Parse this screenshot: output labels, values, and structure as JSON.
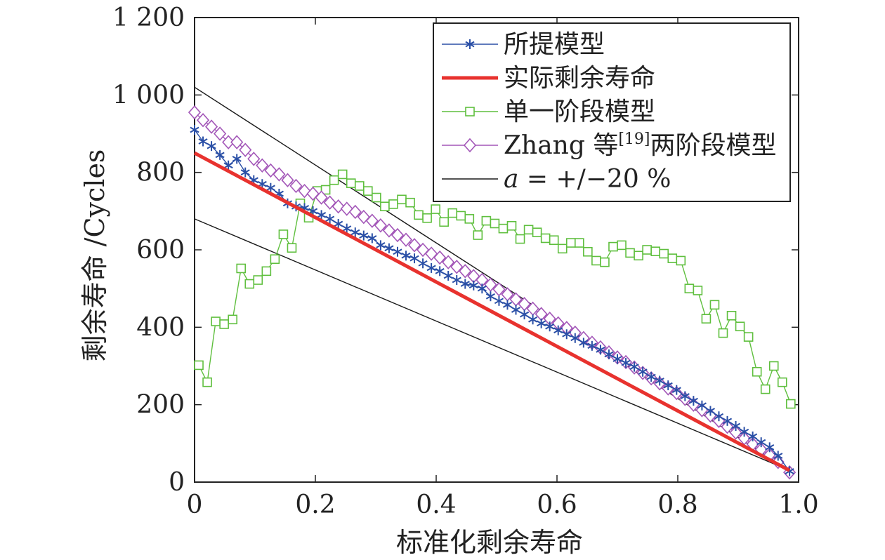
{
  "chart_data": {
    "type": "line",
    "title": "",
    "xlabel": "标准化剩余寿命",
    "ylabel": "剩余寿命 /Cycles",
    "xlim": [
      0,
      1.0
    ],
    "ylim": [
      0,
      1200
    ],
    "x_ticks": [
      0,
      0.2,
      0.4,
      0.6,
      0.8,
      1.0
    ],
    "x_tick_labels": [
      "0",
      "0.2",
      "0.4",
      "0.6",
      "0.8",
      "1.0"
    ],
    "y_ticks": [
      0,
      200,
      400,
      600,
      800,
      1000,
      1200
    ],
    "y_tick_labels": [
      "0",
      "200",
      "400",
      "600",
      "800",
      "1 000",
      "1 200"
    ],
    "grid": false,
    "legend_position": "top-right",
    "legend": [
      {
        "label": "所提模型",
        "series": "proposed"
      },
      {
        "label": "实际剩余寿命",
        "series": "actual"
      },
      {
        "label": "单一阶段模型",
        "series": "single"
      },
      {
        "label": "Zhang 等",
        "sup": "[19]",
        "label_suffix": "两阶段模型",
        "series": "zhang"
      },
      {
        "label_prefix": "a",
        "label": " = +/−20 %",
        "series": "bounds"
      }
    ],
    "series": [
      {
        "key": "actual",
        "color": "#e8322e",
        "marker": "none",
        "x": [
          0,
          0.985
        ],
        "y": [
          850,
          30
        ]
      },
      {
        "key": "bounds",
        "color": "#1a1a1a",
        "marker": "none",
        "x": [
          0,
          0.985
        ],
        "y": [
          1020,
          30
        ],
        "y2": [
          680,
          30
        ]
      },
      {
        "key": "proposed",
        "color": "#2a4fa6",
        "marker": "star",
        "x": [
          0,
          0.014,
          0.028,
          0.042,
          0.056,
          0.07,
          0.084,
          0.098,
          0.112,
          0.126,
          0.14,
          0.154,
          0.168,
          0.182,
          0.196,
          0.21,
          0.224,
          0.238,
          0.252,
          0.266,
          0.28,
          0.294,
          0.308,
          0.322,
          0.336,
          0.35,
          0.364,
          0.378,
          0.392,
          0.406,
          0.42,
          0.434,
          0.448,
          0.462,
          0.476,
          0.49,
          0.504,
          0.518,
          0.532,
          0.546,
          0.56,
          0.574,
          0.588,
          0.602,
          0.616,
          0.63,
          0.644,
          0.658,
          0.672,
          0.686,
          0.7,
          0.714,
          0.728,
          0.742,
          0.756,
          0.77,
          0.784,
          0.798,
          0.812,
          0.826,
          0.84,
          0.854,
          0.868,
          0.882,
          0.896,
          0.91,
          0.924,
          0.938,
          0.952,
          0.966,
          0.985
        ],
        "y": [
          910,
          880,
          868,
          845,
          818,
          835,
          800,
          780,
          770,
          760,
          745,
          720,
          712,
          708,
          700,
          690,
          680,
          667,
          655,
          645,
          637,
          630,
          612,
          604,
          595,
          585,
          578,
          565,
          553,
          545,
          533,
          522,
          512,
          508,
          500,
          480,
          468,
          458,
          445,
          433,
          420,
          410,
          402,
          392,
          382,
          372,
          360,
          352,
          342,
          330,
          318,
          308,
          298,
          285,
          272,
          262,
          250,
          238,
          222,
          210,
          198,
          184,
          170,
          158,
          145,
          130,
          118,
          103,
          90,
          68,
          28
        ]
      },
      {
        "key": "zhang",
        "color": "#a357b8",
        "marker": "diamond",
        "x": [
          0,
          0.014,
          0.028,
          0.042,
          0.056,
          0.07,
          0.084,
          0.098,
          0.112,
          0.126,
          0.14,
          0.154,
          0.168,
          0.182,
          0.196,
          0.21,
          0.224,
          0.238,
          0.252,
          0.266,
          0.28,
          0.294,
          0.308,
          0.322,
          0.336,
          0.35,
          0.364,
          0.378,
          0.392,
          0.406,
          0.42,
          0.434,
          0.448,
          0.462,
          0.476,
          0.49,
          0.504,
          0.518,
          0.532,
          0.546,
          0.56,
          0.574,
          0.588,
          0.602,
          0.616,
          0.63,
          0.644,
          0.658,
          0.672,
          0.686,
          0.7,
          0.714,
          0.728,
          0.742,
          0.756,
          0.77,
          0.784,
          0.798,
          0.812,
          0.826,
          0.84,
          0.854,
          0.868,
          0.882,
          0.896,
          0.91,
          0.924,
          0.938,
          0.952,
          0.966,
          0.985
        ],
        "y": [
          955,
          935,
          918,
          900,
          878,
          878,
          858,
          835,
          818,
          805,
          795,
          780,
          765,
          752,
          745,
          735,
          722,
          712,
          706,
          698,
          685,
          675,
          663,
          650,
          638,
          626,
          612,
          600,
          590,
          580,
          568,
          556,
          545,
          532,
          522,
          510,
          498,
          485,
          472,
          460,
          448,
          434,
          422,
          410,
          398,
          386,
          372,
          360,
          348,
          335,
          322,
          310,
          296,
          282,
          268,
          255,
          242,
          230,
          215,
          200,
          186,
          172,
          158,
          143,
          128,
          113,
          98,
          84,
          70,
          52,
          25
        ]
      },
      {
        "key": "single",
        "color": "#5fbf3e",
        "marker": "square",
        "x": [
          0.007,
          0.021,
          0.035,
          0.049,
          0.063,
          0.077,
          0.091,
          0.105,
          0.119,
          0.133,
          0.147,
          0.161,
          0.175,
          0.189,
          0.203,
          0.217,
          0.231,
          0.245,
          0.259,
          0.273,
          0.287,
          0.301,
          0.315,
          0.329,
          0.343,
          0.357,
          0.371,
          0.385,
          0.399,
          0.413,
          0.427,
          0.441,
          0.455,
          0.469,
          0.483,
          0.497,
          0.511,
          0.525,
          0.539,
          0.553,
          0.567,
          0.581,
          0.595,
          0.609,
          0.623,
          0.637,
          0.651,
          0.665,
          0.679,
          0.693,
          0.707,
          0.721,
          0.735,
          0.749,
          0.763,
          0.777,
          0.791,
          0.805,
          0.819,
          0.833,
          0.847,
          0.861,
          0.875,
          0.889,
          0.903,
          0.917,
          0.931,
          0.945,
          0.959,
          0.973,
          0.987
        ],
        "y": [
          302,
          258,
          415,
          408,
          420,
          552,
          512,
          522,
          545,
          576,
          640,
          605,
          720,
          683,
          752,
          755,
          780,
          795,
          772,
          765,
          752,
          735,
          712,
          718,
          730,
          722,
          690,
          682,
          705,
          672,
          695,
          688,
          680,
          638,
          675,
          668,
          655,
          662,
          628,
          652,
          645,
          630,
          625,
          603,
          618,
          618,
          595,
          572,
          568,
          608,
          612,
          592,
          585,
          600,
          596,
          590,
          578,
          572,
          500,
          495,
          422,
          458,
          385,
          430,
          402,
          375,
          285,
          240,
          300,
          258,
          202
        ]
      }
    ]
  }
}
